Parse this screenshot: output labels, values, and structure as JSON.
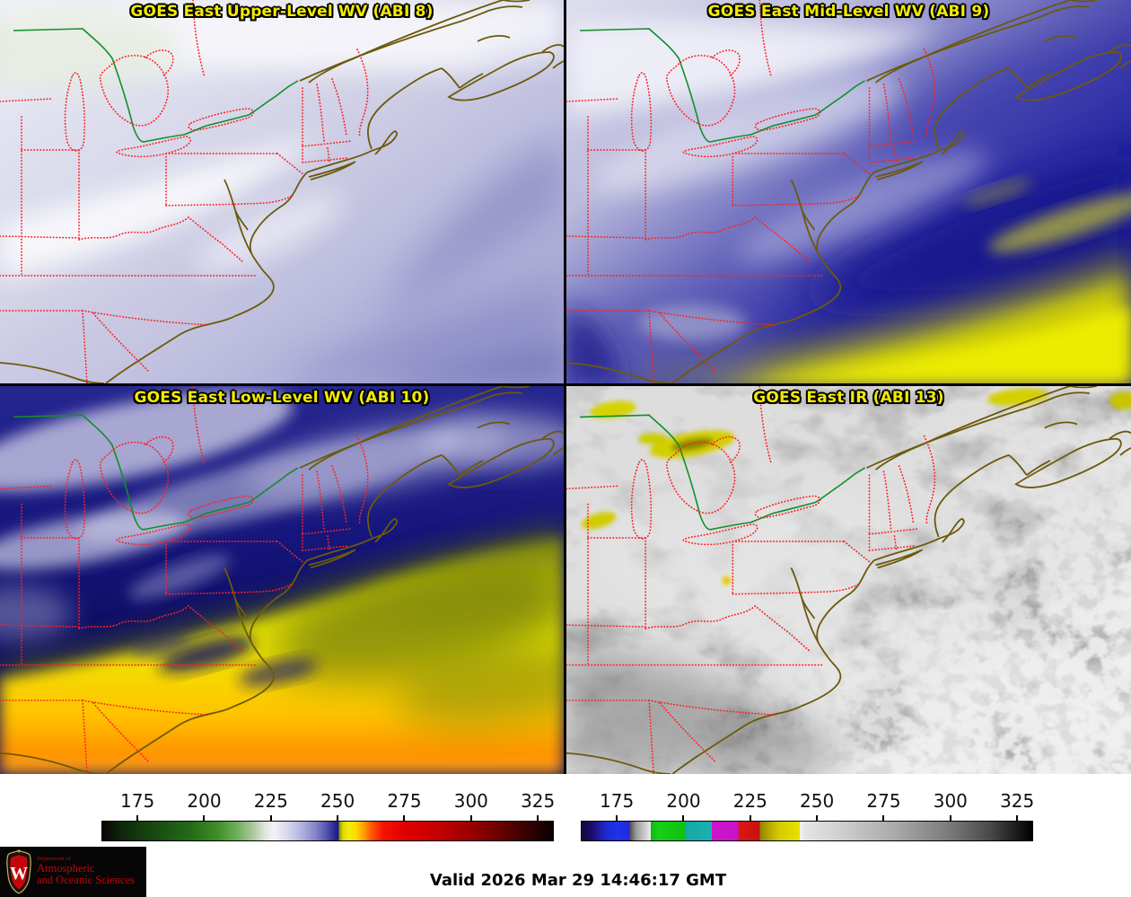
{
  "panels": [
    {
      "key": "upper_wv",
      "title": "GOES East Upper-Level WV (ABI 8)"
    },
    {
      "key": "mid_wv",
      "title": "GOES East Mid-Level WV (ABI 9)"
    },
    {
      "key": "low_wv",
      "title": "GOES East Low-Level WV (ABI 10)"
    },
    {
      "key": "ir",
      "title": "GOES East IR (ABI 13)"
    }
  ],
  "colorbars": {
    "wv": {
      "ticks": [
        175,
        200,
        225,
        250,
        275,
        300,
        325
      ],
      "range": [
        161.5,
        331
      ],
      "stops": [
        [
          161.5,
          "#050505"
        ],
        [
          168,
          "#0d2409"
        ],
        [
          180,
          "#174710"
        ],
        [
          195,
          "#256b17"
        ],
        [
          205,
          "#3f8f27"
        ],
        [
          212,
          "#6fae58"
        ],
        [
          218,
          "#a9c79c"
        ],
        [
          223,
          "#e2e7e0"
        ],
        [
          226,
          "#f2f2f6"
        ],
        [
          231,
          "#d9d9ec"
        ],
        [
          237,
          "#aeaedd"
        ],
        [
          242,
          "#8181c6"
        ],
        [
          246,
          "#5252ad"
        ],
        [
          249,
          "#28288f"
        ],
        [
          250.5,
          "#191985"
        ],
        [
          250.5,
          "#8f8f00"
        ],
        [
          252,
          "#d8d800"
        ],
        [
          254,
          "#f0ee00"
        ],
        [
          257,
          "#ffd800"
        ],
        [
          260,
          "#ff9c00"
        ],
        [
          263,
          "#ff5400"
        ],
        [
          267,
          "#f51400"
        ],
        [
          275,
          "#e00000"
        ],
        [
          288,
          "#c40000"
        ],
        [
          300,
          "#980000"
        ],
        [
          312,
          "#650000"
        ],
        [
          322,
          "#330000"
        ],
        [
          331,
          "#0a0000"
        ]
      ]
    },
    "ir": {
      "ticks": [
        175,
        200,
        225,
        250,
        275,
        300,
        325
      ],
      "range": [
        161.5,
        331
      ],
      "stops": [
        [
          161.5,
          "#14073c"
        ],
        [
          165,
          "#1c0a66"
        ],
        [
          168,
          "#1f1b9e"
        ],
        [
          171,
          "#1f2ad4"
        ],
        [
          175,
          "#1a35ee"
        ],
        [
          179.5,
          "#2727d8"
        ],
        [
          179.5,
          "#4a4a4a"
        ],
        [
          182,
          "#9a9a9a"
        ],
        [
          187.5,
          "#ececec"
        ],
        [
          187.5,
          "#12b412"
        ],
        [
          190,
          "#16d016"
        ],
        [
          200.5,
          "#10c010"
        ],
        [
          200.5,
          "#17a8a8"
        ],
        [
          210.5,
          "#1bb0b0"
        ],
        [
          210.5,
          "#cc14cc"
        ],
        [
          220.5,
          "#c814c8"
        ],
        [
          220.5,
          "#dc1616"
        ],
        [
          228.5,
          "#c81010"
        ],
        [
          228.5,
          "#8f8400"
        ],
        [
          232,
          "#b4a800"
        ],
        [
          236,
          "#d8cc00"
        ],
        [
          243.5,
          "#e8e000"
        ],
        [
          243.5,
          "#f2f2ea"
        ],
        [
          246,
          "#e4e4e4"
        ],
        [
          260,
          "#cdcdcd"
        ],
        [
          280,
          "#a8a8a8"
        ],
        [
          300,
          "#7a7a7a"
        ],
        [
          315,
          "#4a4a4a"
        ],
        [
          331,
          "#000000"
        ]
      ]
    }
  },
  "footer": {
    "valid_time": "Valid 2026 Mar 29 14:46:17 GMT"
  },
  "logo": {
    "dept": "Department of",
    "line1": "Atmospheric",
    "line2": "and Oceanic Sciences",
    "initial": "W"
  },
  "colors": {
    "title_text": "#f2ea00",
    "state_borders": "#ff2020",
    "coastline": "#6b5a0a",
    "international_border": "#0f8f2a",
    "uw_red": "#c5050c"
  }
}
